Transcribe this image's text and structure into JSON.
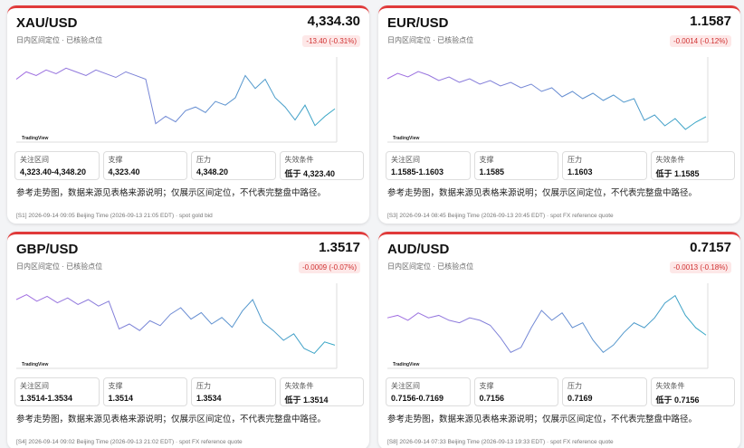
{
  "note": "参考走势图，数据来源见表格来源说明；仅展示区间定位，不代表完整盘中路径。",
  "subtitle": "日内区间定位 · 已核验点位",
  "box_labels": [
    "关注区间",
    "支撑",
    "压力",
    "失效条件"
  ],
  "watermark": "TradingView",
  "cards": [
    {
      "symbol": "XAU/USD",
      "price": "4,334.30",
      "change": "-13.40 (-0.31%)",
      "boxes": [
        "4,323.40-4,348.20",
        "4,323.40",
        "4,348.20",
        "低于 4,323.40"
      ],
      "footer": "[S1] 2026-09-14 09:05 Beijing Time (2026-09-13 21:05 EDT) · spot gold bid",
      "chart": {
        "type": "line",
        "colors": [
          "#a56de2",
          "#34a7c4"
        ],
        "ylim": [
          4318,
          4362
        ],
        "values": [
          4350,
          4354,
          4352,
          4355,
          4353,
          4356,
          4354,
          4352,
          4355,
          4353,
          4351,
          4354,
          4352,
          4350,
          4326,
          4330,
          4327,
          4333,
          4335,
          4332,
          4338,
          4336,
          4340,
          4352,
          4345,
          4350,
          4340,
          4335,
          4328,
          4336,
          4325,
          4330,
          4334
        ]
      }
    },
    {
      "symbol": "EUR/USD",
      "price": "1.1587",
      "change": "-0.0014 (-0.12%)",
      "boxes": [
        "1.1585-1.1603",
        "1.1585",
        "1.1603",
        "低于 1.1585"
      ],
      "footer": "[S3] 2026-09-14 08:45 Beijing Time (2026-09-13 20:45 EDT) · spot FX reference quote",
      "chart": {
        "type": "line",
        "colors": [
          "#a56de2",
          "#34a7c4"
        ],
        "ylim": [
          1.1575,
          1.162
        ],
        "values": [
          1.1608,
          1.1611,
          1.1609,
          1.1612,
          1.161,
          1.1607,
          1.1609,
          1.1606,
          1.1608,
          1.1605,
          1.1607,
          1.1604,
          1.1606,
          1.1603,
          1.1605,
          1.1601,
          1.1603,
          1.1598,
          1.1601,
          1.1597,
          1.16,
          1.1596,
          1.1599,
          1.1595,
          1.1597,
          1.1585,
          1.1588,
          1.1582,
          1.1586,
          1.158,
          1.1584,
          1.1587
        ]
      }
    },
    {
      "symbol": "GBP/USD",
      "price": "1.3517",
      "change": "-0.0009 (-0.07%)",
      "boxes": [
        "1.3514-1.3534",
        "1.3514",
        "1.3534",
        "低于 1.3514"
      ],
      "footer": "[S4] 2026-09-14 09:02 Beijing Time (2026-09-13 21:02 EDT) · spot FX reference quote",
      "chart": {
        "type": "line",
        "colors": [
          "#a56de2",
          "#34a7c4"
        ],
        "ylim": [
          1.3505,
          1.3555
        ],
        "values": [
          1.3545,
          1.3548,
          1.3544,
          1.3547,
          1.3543,
          1.3546,
          1.3542,
          1.3545,
          1.3541,
          1.3544,
          1.3527,
          1.353,
          1.3526,
          1.3532,
          1.3529,
          1.3536,
          1.354,
          1.3533,
          1.3537,
          1.353,
          1.3534,
          1.3528,
          1.3538,
          1.3545,
          1.3531,
          1.3526,
          1.352,
          1.3524,
          1.3515,
          1.3512,
          1.3519,
          1.3517
        ]
      }
    },
    {
      "symbol": "AUD/USD",
      "price": "0.7157",
      "change": "-0.0013 (-0.18%)",
      "boxes": [
        "0.7156-0.7169",
        "0.7156",
        "0.7169",
        "低于 0.7156"
      ],
      "footer": "[S8] 2026-09-14 07:33 Beijing Time (2026-09-13 19:33 EDT) · spot FX reference quote",
      "chart": {
        "type": "line",
        "colors": [
          "#a56de2",
          "#34a7c4"
        ],
        "ylim": [
          0.7145,
          0.7178
        ],
        "values": [
          0.7164,
          0.7165,
          0.7163,
          0.7166,
          0.7164,
          0.7165,
          0.7163,
          0.7162,
          0.7164,
          0.7163,
          0.7161,
          0.7156,
          0.715,
          0.7152,
          0.716,
          0.7167,
          0.7163,
          0.7166,
          0.716,
          0.7162,
          0.7155,
          0.715,
          0.7153,
          0.7158,
          0.7162,
          0.716,
          0.7164,
          0.717,
          0.7173,
          0.7165,
          0.716,
          0.7157
        ]
      }
    }
  ]
}
